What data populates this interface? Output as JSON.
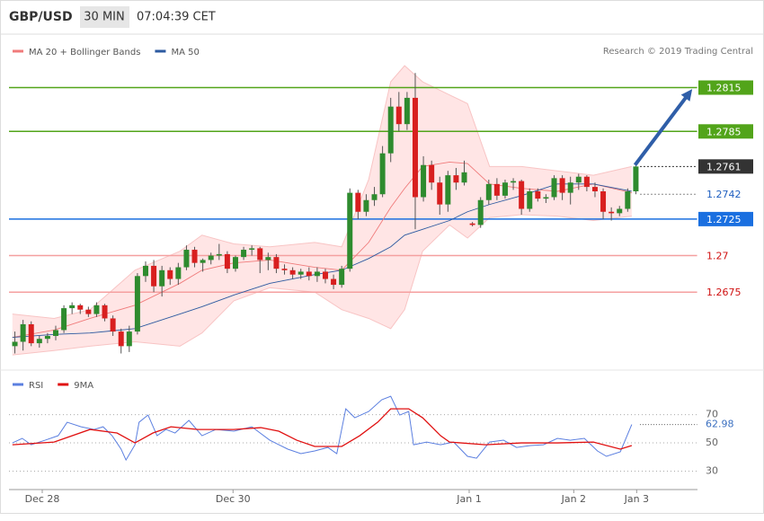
{
  "header": {
    "symbol": "GBP/USD",
    "interval": "30 MIN",
    "time": "07:04:39 CET",
    "credit": "Research © 2019 Trading Central"
  },
  "chart_data": [
    {
      "type": "candlestick",
      "xlim": [
        0,
        84
      ],
      "ylim": [
        1.2629,
        1.2835
      ],
      "up_color": "#2e8b2e",
      "down_color": "#d81f1f",
      "ohlc": [
        [
          1.2638,
          1.2648,
          1.2633,
          1.2641
        ],
        [
          1.2641,
          1.2656,
          1.2635,
          1.2653
        ],
        [
          1.2653,
          1.2655,
          1.2638,
          1.264
        ],
        [
          1.264,
          1.2645,
          1.2637,
          1.2643
        ],
        [
          1.2643,
          1.2647,
          1.264,
          1.2645
        ],
        [
          1.2645,
          1.2652,
          1.2642,
          1.2649
        ],
        [
          1.2649,
          1.2666,
          1.2647,
          1.2664
        ],
        [
          1.2664,
          1.2668,
          1.266,
          1.2666
        ],
        [
          1.2666,
          1.2667,
          1.266,
          1.2663
        ],
        [
          1.2663,
          1.2665,
          1.2658,
          1.266
        ],
        [
          1.266,
          1.2668,
          1.2658,
          1.2666
        ],
        [
          1.2666,
          1.2667,
          1.2655,
          1.2657
        ],
        [
          1.2657,
          1.2659,
          1.2645,
          1.2648
        ],
        [
          1.2648,
          1.265,
          1.2633,
          1.2638
        ],
        [
          1.2638,
          1.2652,
          1.2634,
          1.2648
        ],
        [
          1.2648,
          1.2688,
          1.2646,
          1.2686
        ],
        [
          1.2686,
          1.2696,
          1.2682,
          1.2693
        ],
        [
          1.2693,
          1.2697,
          1.2675,
          1.2679
        ],
        [
          1.2679,
          1.2693,
          1.2672,
          1.269
        ],
        [
          1.269,
          1.2692,
          1.268,
          1.2684
        ],
        [
          1.2684,
          1.2695,
          1.268,
          1.2692
        ],
        [
          1.2692,
          1.2707,
          1.269,
          1.2704
        ],
        [
          1.2704,
          1.2706,
          1.2692,
          1.2695
        ],
        [
          1.2695,
          1.2698,
          1.2689,
          1.2697
        ],
        [
          1.2697,
          1.2702,
          1.2694,
          1.27
        ],
        [
          1.27,
          1.2708,
          1.2697,
          1.2701
        ],
        [
          1.2701,
          1.2703,
          1.2688,
          1.2691
        ],
        [
          1.2691,
          1.27,
          1.2689,
          1.2699
        ],
        [
          1.2699,
          1.2706,
          1.2697,
          1.2704
        ],
        [
          1.2704,
          1.2707,
          1.27,
          1.2705
        ],
        [
          1.2705,
          1.2706,
          1.2688,
          1.2697
        ],
        [
          1.2697,
          1.2702,
          1.269,
          1.2699
        ],
        [
          1.2699,
          1.2701,
          1.2688,
          1.2691
        ],
        [
          1.2691,
          1.2694,
          1.2687,
          1.269
        ],
        [
          1.269,
          1.2692,
          1.2684,
          1.2687
        ],
        [
          1.2687,
          1.2691,
          1.2684,
          1.2689
        ],
        [
          1.2689,
          1.2692,
          1.2683,
          1.2686
        ],
        [
          1.2686,
          1.2692,
          1.2682,
          1.2689
        ],
        [
          1.2689,
          1.2691,
          1.2681,
          1.2684
        ],
        [
          1.2684,
          1.2687,
          1.2677,
          1.268
        ],
        [
          1.268,
          1.2693,
          1.2678,
          1.2691
        ],
        [
          1.2691,
          1.2746,
          1.2689,
          1.2743
        ],
        [
          1.2743,
          1.2745,
          1.2725,
          1.273
        ],
        [
          1.273,
          1.2742,
          1.2727,
          1.2738
        ],
        [
          1.2738,
          1.2747,
          1.2734,
          1.2742
        ],
        [
          1.2742,
          1.2775,
          1.274,
          1.277
        ],
        [
          1.277,
          1.2808,
          1.2764,
          1.2802
        ],
        [
          1.2802,
          1.2812,
          1.2785,
          1.279
        ],
        [
          1.279,
          1.2812,
          1.2786,
          1.2808
        ],
        [
          1.2808,
          1.2825,
          1.2718,
          1.274
        ],
        [
          1.274,
          1.2768,
          1.2737,
          1.2762
        ],
        [
          1.2762,
          1.2765,
          1.2745,
          1.275
        ],
        [
          1.275,
          1.2754,
          1.2728,
          1.2735
        ],
        [
          1.2735,
          1.2758,
          1.273,
          1.2755
        ],
        [
          1.2755,
          1.276,
          1.2745,
          1.275
        ],
        [
          1.275,
          1.2765,
          1.2748,
          1.2757
        ],
        [
          1.2722,
          1.2723,
          1.272,
          1.2721
        ],
        [
          1.2721,
          1.274,
          1.2719,
          1.2738
        ],
        [
          1.2738,
          1.2752,
          1.2735,
          1.2749
        ],
        [
          1.2749,
          1.2753,
          1.2738,
          1.2741
        ],
        [
          1.2741,
          1.2752,
          1.2739,
          1.275
        ],
        [
          1.275,
          1.2753,
          1.2745,
          1.2751
        ],
        [
          1.2751,
          1.2752,
          1.2728,
          1.2732
        ],
        [
          1.2732,
          1.2746,
          1.273,
          1.2744
        ],
        [
          1.2744,
          1.2746,
          1.2737,
          1.2739
        ],
        [
          1.2739,
          1.2742,
          1.2736,
          1.274
        ],
        [
          1.274,
          1.2755,
          1.2738,
          1.2753
        ],
        [
          1.2753,
          1.2755,
          1.2738,
          1.2743
        ],
        [
          1.2743,
          1.2754,
          1.2735,
          1.275
        ],
        [
          1.275,
          1.2756,
          1.2745,
          1.2754
        ],
        [
          1.2754,
          1.2755,
          1.2744,
          1.2747
        ],
        [
          1.2747,
          1.275,
          1.274,
          1.2744
        ],
        [
          1.2744,
          1.2746,
          1.2725,
          1.273
        ],
        [
          1.273,
          1.2733,
          1.2724,
          1.2729
        ],
        [
          1.2729,
          1.2734,
          1.2727,
          1.2732
        ],
        [
          1.2732,
          1.2746,
          1.273,
          1.2744
        ],
        [
          1.2744,
          1.2763,
          1.2742,
          1.2761
        ]
      ],
      "overlay_x": [
        0.2,
        5.3,
        9.7,
        15.2,
        20.7,
        23.4,
        27.3,
        31.7,
        37.2,
        40.5,
        43.8,
        46.5,
        48.2,
        50.4,
        53.7,
        55.9,
        58.6,
        62.5,
        66.9,
        71.3,
        76.0
      ],
      "series": [
        {
          "name": "MA 20 + Bollinger Bands",
          "color": "#f07b7b",
          "values": [
            1.2644,
            1.2649,
            1.2657,
            1.2666,
            1.2681,
            1.269,
            1.2695,
            1.2697,
            1.2692,
            1.269,
            1.2709,
            1.2733,
            1.2746,
            1.2761,
            1.2764,
            1.2763,
            1.2749,
            1.2746,
            1.2744,
            1.2749,
            1.2743
          ]
        },
        {
          "name": "MA 50",
          "color": "#2c5aa0",
          "values": [
            1.2644,
            1.2646,
            1.2647,
            1.265,
            1.266,
            1.2665,
            1.2673,
            1.2681,
            1.2687,
            1.269,
            1.2698,
            1.2706,
            1.2714,
            1.2718,
            1.2724,
            1.273,
            1.2735,
            1.2741,
            1.2749,
            1.2749,
            1.2744
          ]
        }
      ],
      "bands": {
        "color": "#ffdede",
        "upper": [
          1.266,
          1.2657,
          1.2663,
          1.269,
          1.2703,
          1.2714,
          1.2708,
          1.2706,
          1.2709,
          1.2706,
          1.2752,
          1.2819,
          1.283,
          1.2819,
          1.281,
          1.2804,
          1.2761,
          1.2761,
          1.2758,
          1.2755,
          1.2761
        ],
        "lower": [
          1.2632,
          1.2635,
          1.2638,
          1.2641,
          1.2638,
          1.2647,
          1.2669,
          1.2678,
          1.2675,
          1.2663,
          1.2657,
          1.265,
          1.2663,
          1.2703,
          1.2721,
          1.2712,
          1.2726,
          1.2728,
          1.2727,
          1.2724,
          1.2727
        ]
      },
      "levels": [
        {
          "value": 1.2815,
          "color": "#52a41a",
          "text_color": "#ffffff",
          "line": "solid",
          "label_style": "filled"
        },
        {
          "value": 1.2785,
          "color": "#52a41a",
          "text_color": "#ffffff",
          "line": "solid",
          "label_style": "filled"
        },
        {
          "value": 1.2761,
          "color": "#333333",
          "text_color": "#ffffff",
          "line": "dotted",
          "label_style": "filled"
        },
        {
          "value": 1.2742,
          "color": "#888888",
          "text_color": "#1f5fc0",
          "line": "dotted",
          "label_style": "plain"
        },
        {
          "value": 1.2725,
          "color": "#1a6fe0",
          "text_color": "#ffffff",
          "line": "solid",
          "label_style": "filled"
        },
        {
          "value": 1.27,
          "color": "#f5a0a0",
          "text_color": "#d01010",
          "line": "solid",
          "label_style": "plain"
        },
        {
          "value": 1.2675,
          "color": "#f5a0a0",
          "text_color": "#d01010",
          "line": "solid",
          "label_style": "plain"
        }
      ],
      "arrow": {
        "x": [
          76.4,
          83.4
        ],
        "values": [
          1.2762,
          1.2814
        ],
        "color": "#2f5ea8"
      }
    },
    {
      "type": "line",
      "xlim": [
        0,
        84
      ],
      "ylim": [
        17,
        83.7
      ],
      "yticks": [
        30,
        50,
        70
      ],
      "current": 62.98,
      "xticks": [
        {
          "value": 3.85,
          "label": "Dec 28"
        },
        {
          "value": 27.2,
          "label": "Dec 30"
        },
        {
          "value": 56.1,
          "label": "Jan 1"
        },
        {
          "value": 68.9,
          "label": "Jan 2"
        },
        {
          "value": 76.6,
          "label": "Jan 3"
        }
      ],
      "series": [
        {
          "name": "RSI",
          "color": "#5b7fe0",
          "x": [
            0.2,
            1.4,
            2.5,
            4.2,
            5.8,
            6.9,
            8.6,
            10.2,
            11.3,
            12.4,
            13.5,
            14.1,
            15.2,
            15.7,
            16.8,
            17.9,
            19.0,
            20.1,
            21.8,
            23.4,
            25.1,
            27.3,
            29.5,
            31.7,
            32.8,
            33.9,
            35.5,
            37.2,
            38.8,
            39.9,
            41.0,
            42.1,
            43.8,
            45.4,
            46.5,
            47.6,
            48.7,
            49.3,
            50.9,
            52.6,
            54.2,
            55.9,
            57.0,
            58.6,
            60.3,
            61.9,
            63.6,
            65.2,
            66.9,
            68.5,
            70.2,
            71.8,
            72.9,
            74.6,
            76.0
          ],
          "values": [
            50,
            53.2,
            48.7,
            51.9,
            55.1,
            64.6,
            61.4,
            59.5,
            61.4,
            55.1,
            45.6,
            37.9,
            48.7,
            64.6,
            69.7,
            55.1,
            59.5,
            57.0,
            65.9,
            55.1,
            59.5,
            58.3,
            61.4,
            51.9,
            48.7,
            45.6,
            42.4,
            44.3,
            46.8,
            42.4,
            74.1,
            67.8,
            72.2,
            80.5,
            83,
            69.7,
            72.2,
            48.7,
            50.6,
            48.7,
            50.6,
            40.5,
            39.2,
            50.6,
            51.9,
            46.8,
            48.1,
            48.7,
            53.2,
            51.9,
            53.2,
            44.3,
            40.5,
            43.7,
            62.98
          ]
        },
        {
          "name": "9MA",
          "color": "#e01010",
          "x": [
            0.2,
            5.3,
            9.7,
            13.0,
            15.2,
            17.4,
            19.6,
            22.9,
            27.3,
            30.6,
            32.8,
            35.0,
            37.2,
            40.5,
            42.7,
            44.9,
            46.5,
            48.7,
            50.4,
            52.6,
            53.7,
            58.1,
            62.5,
            66.9,
            71.3,
            74.6,
            76.0
          ],
          "values": [
            48.7,
            50.6,
            59.5,
            57.0,
            50,
            57.0,
            61.4,
            59.5,
            59.5,
            60.8,
            58.3,
            51.9,
            47.5,
            47.5,
            55.1,
            64.6,
            74.1,
            74.1,
            67.8,
            55.1,
            50.6,
            48.7,
            50,
            50,
            50.6,
            45.6,
            48.1
          ]
        }
      ]
    }
  ]
}
